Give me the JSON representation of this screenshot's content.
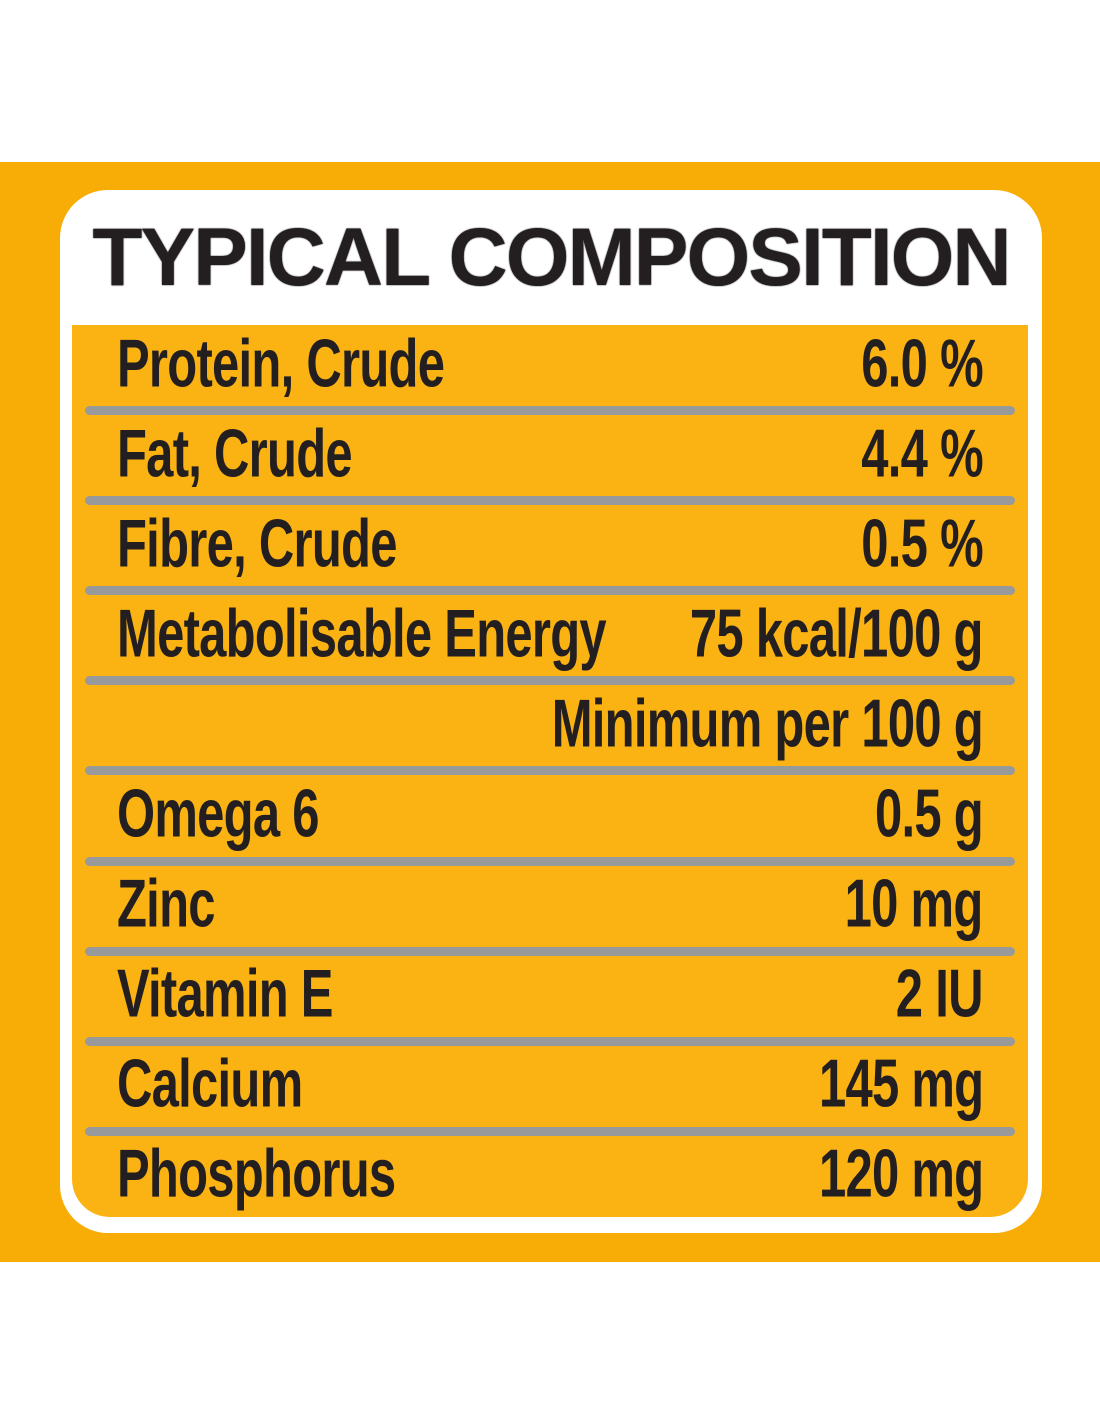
{
  "label": {
    "title": "TYPICAL COMPOSITION",
    "table": {
      "rows": [
        {
          "label": "Protein, Crude",
          "value": "6.0 %",
          "section_header": false
        },
        {
          "label": "Fat, Crude",
          "value": "4.4 %",
          "section_header": false
        },
        {
          "label": "Fibre, Crude",
          "value": "0.5 %",
          "section_header": false
        },
        {
          "label": "Metabolisable Energy",
          "value": "75 kcal/100 g",
          "section_header": false
        },
        {
          "label": "",
          "value": "Minimum per 100 g",
          "section_header": true
        },
        {
          "label": "Omega 6",
          "value": "0.5 g",
          "section_header": false
        },
        {
          "label": "Zinc",
          "value": "10 mg",
          "section_header": false
        },
        {
          "label": "Vitamin E",
          "value": "2 IU",
          "section_header": false
        },
        {
          "label": "Calcium",
          "value": "145 mg",
          "section_header": false
        },
        {
          "label": "Phosphorus",
          "value": "120 mg",
          "section_header": false
        }
      ]
    },
    "colors": {
      "background_yellow": "#F8AC06",
      "panel_yellow": "#FBB313",
      "text_black": "#231F20",
      "divider_gray": "#98999B",
      "card_white": "#FFFFFF"
    }
  }
}
